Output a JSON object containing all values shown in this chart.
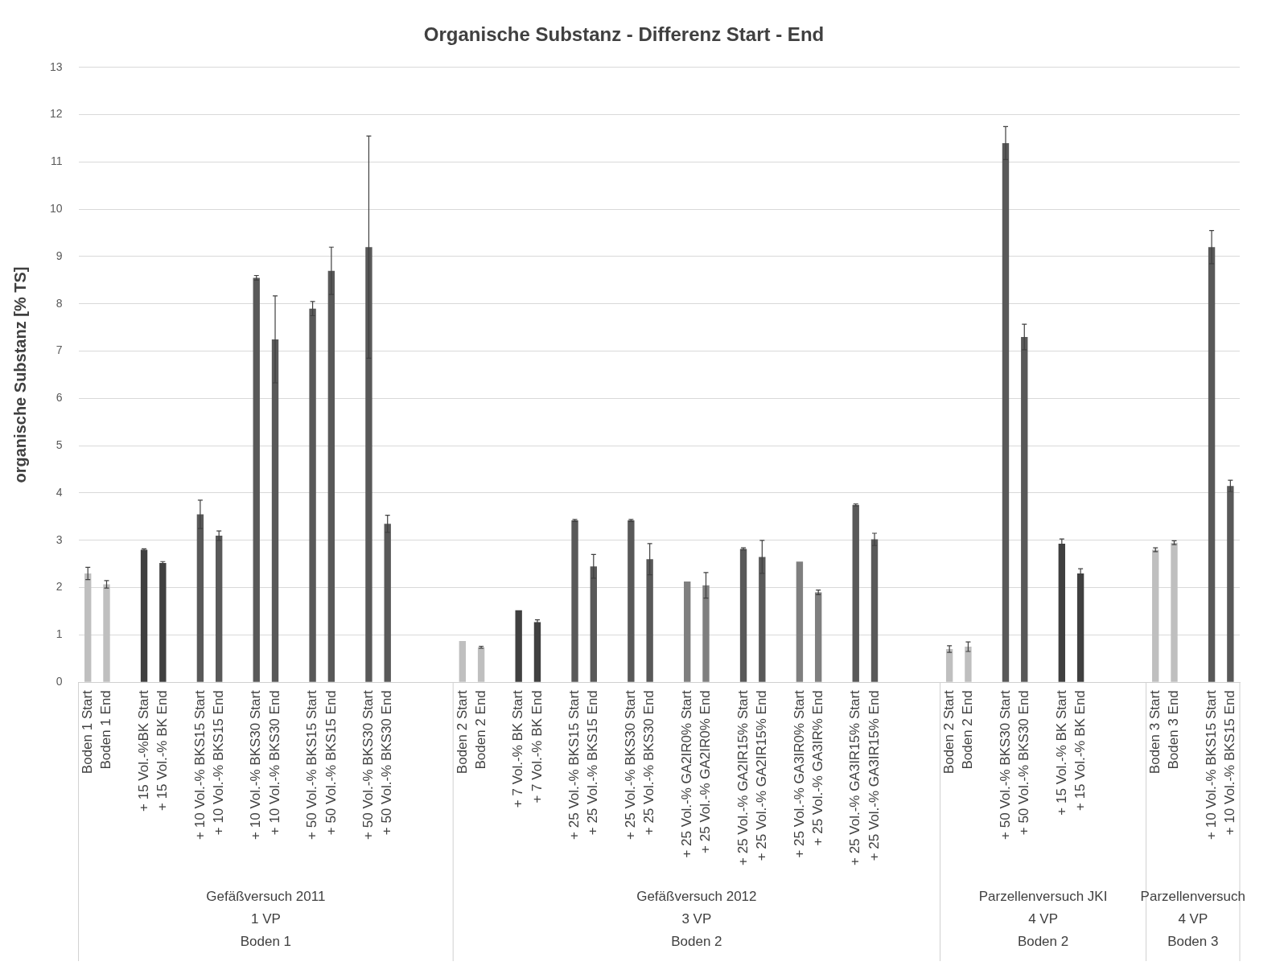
{
  "chart_data": {
    "type": "bar",
    "title": "Organische Substanz - Differenz Start - End",
    "ylabel": "organische Substanz [% TS]",
    "categories": [
      "Boden 1 Start",
      "Boden 1 End",
      null,
      "+ 15 Vol.-%BK Start",
      "+ 15 Vol.-% BK End",
      null,
      "+ 10 Vol.-% BKS15 Start",
      "+ 10 Vol.-% BKS15 End",
      null,
      "+ 10 Vol.-% BKS30 Start",
      "+ 10 Vol.-% BKS30 End",
      null,
      "+ 50 Vol.-% BKS15 Start",
      "+ 50 Vol.-% BKS15 End",
      null,
      "+ 50 Vol.-% BKS30 Start",
      "+ 50 Vol.-% BKS30 End",
      null,
      null,
      null,
      "Boden 2 Start",
      "Boden 2 End",
      null,
      "+ 7 Vol.-% BK Start",
      "+ 7 Vol.-% BK End",
      null,
      "+ 25 Vol.-% BKS15 Start",
      "+ 25 Vol.-% BKS15 End",
      null,
      "+ 25 Vol.-% BKS30 Start",
      "+ 25 Vol.-% BKS30 End",
      null,
      "+ 25 Vol.-% GA2IR0% Start",
      "+ 25 Vol.-% GA2IR0% End",
      null,
      "+ 25 Vol.-% GA2IR15% Start",
      "+ 25 Vol.-% GA2IR15% End",
      null,
      "+ 25 Vol.-% GA3IR0% Start",
      "+ 25 Vol.-% GA3IR% End",
      null,
      "+ 25 Vol.-% GA3IR15% Start",
      "+ 25 Vol.-% GA3IR15% End",
      null,
      null,
      null,
      "Boden 2 Start",
      "Boden 2 End",
      null,
      "+ 50 Vol.-% BKS30 Start",
      "+ 50 Vol.-% BKS30 End",
      null,
      "+ 15 Vol.-% BK Start",
      "+ 15 Vol.-% BK End",
      null,
      null,
      null,
      "Boden 3 Start",
      "Boden 3 End",
      null,
      "+ 10 Vol.-% BKS15 Start",
      "+ 10 Vol.-% BKS15 End"
    ],
    "values": [
      2.3,
      2.07,
      null,
      2.8,
      2.52,
      null,
      3.55,
      3.1,
      null,
      8.55,
      7.25,
      null,
      7.9,
      8.7,
      null,
      9.2,
      3.35,
      null,
      null,
      null,
      0.87,
      0.74,
      null,
      1.52,
      1.27,
      null,
      3.42,
      2.45,
      null,
      3.42,
      2.6,
      null,
      2.13,
      2.05,
      null,
      2.82,
      2.65,
      null,
      2.55,
      1.9,
      null,
      3.75,
      3.02,
      null,
      null,
      null,
      0.7,
      0.75,
      null,
      11.4,
      7.3,
      null,
      2.93,
      2.3,
      null,
      null,
      null,
      2.8,
      2.95,
      null,
      9.2,
      4.15
    ],
    "errors": [
      0.13,
      0.08,
      null,
      0.02,
      0.03,
      null,
      0.3,
      0.1,
      null,
      0.05,
      0.92,
      null,
      0.15,
      0.5,
      null,
      2.35,
      0.18,
      null,
      null,
      null,
      null,
      0.02,
      null,
      null,
      0.05,
      null,
      0.02,
      0.25,
      null,
      0.02,
      0.33,
      null,
      null,
      0.27,
      null,
      0.02,
      0.35,
      null,
      null,
      0.05,
      null,
      0.02,
      0.13,
      null,
      null,
      null,
      0.07,
      0.1,
      null,
      0.35,
      0.27,
      null,
      0.1,
      0.1,
      null,
      null,
      null,
      0.04,
      0.04,
      null,
      0.35,
      0.12
    ],
    "colors": [
      "#bfbfbf",
      "#bfbfbf",
      null,
      "#404040",
      "#404040",
      null,
      "#595959",
      "#595959",
      null,
      "#595959",
      "#595959",
      null,
      "#595959",
      "#595959",
      null,
      "#595959",
      "#595959",
      null,
      null,
      null,
      "#bfbfbf",
      "#bfbfbf",
      null,
      "#404040",
      "#404040",
      null,
      "#595959",
      "#595959",
      null,
      "#595959",
      "#595959",
      null,
      "#7f7f7f",
      "#7f7f7f",
      null,
      "#595959",
      "#595959",
      null,
      "#7f7f7f",
      "#7f7f7f",
      null,
      "#595959",
      "#595959",
      null,
      null,
      null,
      "#bfbfbf",
      "#bfbfbf",
      null,
      "#595959",
      "#595959",
      null,
      "#404040",
      "#404040",
      null,
      null,
      null,
      "#bfbfbf",
      "#bfbfbf",
      null,
      "#595959",
      "#595959"
    ],
    "ylim": [
      0,
      13
    ],
    "yticks": [
      0,
      1,
      2,
      3,
      4,
      5,
      6,
      7,
      8,
      9,
      10,
      11,
      12,
      13
    ],
    "grid": "y",
    "legend": false,
    "annotations": [
      "Gefäßversuch 2011\n1 VP\nBoden 1",
      "Gefäßversuch 2012\n3 VP\nBoden 2",
      "Parzellenversuch JKI\n4 VP\nBoden 2",
      "Parzellenversuch\n4 VP\nBoden 3"
    ]
  }
}
